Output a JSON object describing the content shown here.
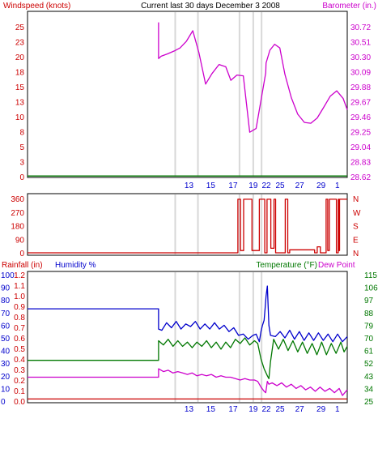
{
  "colors": {
    "wind": "#cc0000",
    "baro": "#cc00cc",
    "dir": "#cc0000",
    "rain": "#cc0000",
    "humidity": "#0000cc",
    "temperature": "#007700",
    "dewpoint": "#cc00cc",
    "label_blue": "#0000cc",
    "label_green": "#007700",
    "label_red": "#cc0000",
    "axis_black": "#000000",
    "grid": "#d8d8d8"
  },
  "chart_data": [
    {
      "type": "line",
      "title": "Current last 30 days December 3 2008",
      "left_axis_label": "Windspeed (knots)",
      "right_axis_label": "Barometer (in.)",
      "left_ticks": [
        "25",
        "23",
        "20",
        "18",
        "15",
        "13",
        "10",
        "8",
        "5",
        "3",
        "0"
      ],
      "right_ticks": [
        "30.72",
        "30.51",
        "30.30",
        "30.09",
        "29.88",
        "29.67",
        "29.46",
        "29.25",
        "29.04",
        "28.83",
        "28.62"
      ],
      "ylim_left": [
        0,
        25.5
      ],
      "ylim_right": [
        28.62,
        30.72
      ],
      "x_ticks": [
        "13",
        "15",
        "17",
        "19",
        "22",
        "25",
        "27",
        "29",
        "1"
      ],
      "series": [
        {
          "name": "Windspeed",
          "color_key": "wind",
          "x": [
            0,
            100
          ],
          "y": [
            0.1,
            0.1
          ]
        },
        {
          "name": "Barometer",
          "color_key": "baro",
          "x": [
            41.0,
            41.0,
            41.8,
            43.7,
            45.9,
            47.7,
            49.7,
            51.7,
            53.6,
            55.7,
            57.7,
            59.9,
            62.0,
            63.6,
            65.5,
            67.5,
            69.5,
            71.5,
            73.9,
            74.5,
            74.6,
            75.8,
            77.3,
            78.9,
            80.5,
            82.5,
            84.5,
            86.6,
            88.6,
            90.6,
            92.6,
            94.7,
            96.7,
            98.7,
            100.0
          ],
          "y": [
            30.67,
            30.19,
            30.22,
            30.25,
            30.29,
            30.33,
            30.42,
            30.56,
            30.27,
            29.85,
            29.99,
            30.11,
            30.08,
            29.9,
            29.97,
            29.96,
            29.21,
            29.26,
            29.85,
            30.0,
            30.13,
            30.3,
            30.38,
            30.33,
            29.98,
            29.67,
            29.45,
            29.34,
            29.33,
            29.4,
            29.54,
            29.69,
            29.76,
            29.66,
            29.51
          ]
        }
      ]
    },
    {
      "type": "line",
      "title": "",
      "left_ticks": [
        "360",
        "270",
        "180",
        "90",
        "0"
      ],
      "right_ticks": [
        "N",
        "W",
        "S",
        "E",
        "N"
      ],
      "ylim": [
        0,
        360
      ],
      "series": [
        {
          "name": "Wind direction",
          "color_key": "dir",
          "x": [
            0,
            65.8,
            65.8,
            66.6,
            66.6,
            67.6,
            67.6,
            70.2,
            70.2,
            72.5,
            72.5,
            74.2,
            74.2,
            74.9,
            74.9,
            76.1,
            76.1,
            77.1,
            77.1,
            77.6,
            77.6,
            80.6,
            80.6,
            81.4,
            81.4,
            82.0,
            82.0,
            89.8,
            89.8,
            90.6,
            90.6,
            91.6,
            91.6,
            93.4,
            93.4,
            93.9,
            93.9,
            94.4,
            94.4,
            96.6,
            96.6,
            97.2,
            97.2,
            97.4,
            97.4,
            97.6,
            97.6,
            100
          ],
          "y": [
            0,
            0,
            355,
            355,
            15,
            15,
            355,
            355,
            15,
            15,
            355,
            355,
            0,
            0,
            355,
            355,
            30,
            30,
            355,
            355,
            0,
            0,
            355,
            355,
            0,
            0,
            20,
            20,
            0,
            0,
            40,
            40,
            0,
            0,
            355,
            355,
            15,
            15,
            355,
            355,
            0,
            0,
            355,
            355,
            15,
            15,
            355,
            355
          ]
        }
      ]
    },
    {
      "type": "line",
      "title": "",
      "labels": {
        "rain": "Rainfall (in)",
        "humidity": "Humidity %",
        "temperature": "Temperature (°F)",
        "dewpoint": "Dew Point"
      },
      "humidity_ticks": [
        "100",
        "90",
        "80",
        "70",
        "60",
        "50",
        "40",
        "30",
        "20",
        "10",
        "0"
      ],
      "rain_ticks": [
        "1.2",
        "1.1",
        "1.0",
        "0.9",
        "0.8",
        "0.7",
        "0.6",
        "0.5",
        "0.4",
        "0.3",
        "0.2",
        "0.1",
        "0.0"
      ],
      "temperature_ticks": [
        "115",
        "106",
        "97",
        "88",
        "79",
        "70",
        "61",
        "52",
        "43",
        "34",
        "25"
      ],
      "ylim_humidity": [
        0,
        100
      ],
      "ylim_temperature": [
        25,
        115
      ],
      "ylim_rain": [
        0,
        1.2
      ],
      "x_ticks": [
        "13",
        "15",
        "17",
        "19",
        "22",
        "25",
        "27",
        "29",
        "1"
      ],
      "series": [
        {
          "name": "Humidity %",
          "axis": "humidity",
          "color_key": "humidity",
          "x": [
            0,
            41.0,
            41.0,
            42.0,
            43.5,
            45.0,
            46.5,
            48.0,
            49.5,
            51.0,
            52.5,
            54.0,
            55.5,
            57.0,
            58.5,
            60.0,
            61.5,
            63.0,
            64.5,
            66.0,
            67.5,
            69.0,
            70.5,
            71.5,
            72.5,
            73.0,
            73.5,
            74.0,
            74.3,
            74.6,
            75.0,
            75.5,
            76.0,
            77.5,
            79.0,
            80.5,
            82.0,
            83.5,
            85.0,
            86.5,
            88.0,
            89.5,
            91.0,
            92.5,
            94.0,
            95.5,
            97.0,
            98.5,
            100.0
          ],
          "y": [
            73,
            73,
            57,
            56,
            62,
            58,
            63,
            57,
            61,
            59,
            63,
            57,
            61,
            57,
            62,
            57,
            60,
            55,
            58,
            52,
            53,
            49,
            52,
            53,
            47,
            55,
            60,
            64,
            73,
            83,
            91,
            60,
            52,
            51,
            55,
            50,
            56,
            49,
            55,
            48,
            54,
            48,
            54,
            48,
            53,
            47,
            53,
            47,
            51
          ]
        },
        {
          "name": "Temperature (°F)",
          "axis": "temperature",
          "color_key": "temperature",
          "x": [
            0,
            41.0,
            41.0,
            42.5,
            44.0,
            45.5,
            47.0,
            48.5,
            50.0,
            51.5,
            53.0,
            54.5,
            56.0,
            57.5,
            59.0,
            60.5,
            62.0,
            63.5,
            65.0,
            66.5,
            68.0,
            69.5,
            71.0,
            72.0,
            73.0,
            74.0,
            75.0,
            75.5,
            76.0,
            77.0,
            78.5,
            80.0,
            81.5,
            83.0,
            84.5,
            86.0,
            87.5,
            89.0,
            90.5,
            92.0,
            93.5,
            95.0,
            96.5,
            98.0,
            99.0,
            100.0
          ],
          "y": [
            54,
            54,
            68,
            65,
            69,
            64,
            68,
            64,
            67,
            63,
            67,
            64,
            68,
            63,
            67,
            62,
            67,
            63,
            69,
            66,
            70,
            65,
            68,
            66,
            55,
            48,
            43,
            41,
            53,
            69,
            62,
            69,
            61,
            68,
            60,
            67,
            59,
            66,
            58,
            67,
            58,
            66,
            59,
            67,
            60,
            64
          ]
        },
        {
          "name": "Dew Point",
          "axis": "temperature",
          "color_key": "dewpoint",
          "x": [
            0,
            41.0,
            41.0,
            42.5,
            44.0,
            45.5,
            47.0,
            48.5,
            50.0,
            51.5,
            53.0,
            54.5,
            56.0,
            57.5,
            59.0,
            60.5,
            62.0,
            63.5,
            65.0,
            66.5,
            68.0,
            69.5,
            71.0,
            72.0,
            73.0,
            74.0,
            74.5,
            75.0,
            75.5,
            76.5,
            78.0,
            79.5,
            81.0,
            82.5,
            84.0,
            85.5,
            87.0,
            88.5,
            90.0,
            91.5,
            93.0,
            94.5,
            96.0,
            97.5,
            98.5,
            100.0
          ],
          "y": [
            42,
            42,
            48,
            46,
            47,
            45,
            46,
            45,
            44,
            45,
            43,
            44,
            43,
            44,
            42,
            43,
            42,
            42,
            41,
            40,
            41,
            40,
            40,
            39,
            35,
            32,
            31,
            39,
            37,
            38,
            36,
            38,
            35,
            37,
            34,
            36,
            33,
            35,
            32,
            35,
            32,
            34,
            31,
            34,
            29,
            33
          ]
        },
        {
          "name": "Rainfall (in)",
          "axis": "rain",
          "color_key": "rain",
          "x": [
            0,
            100
          ],
          "y": [
            0.02,
            0.02
          ]
        }
      ]
    }
  ]
}
